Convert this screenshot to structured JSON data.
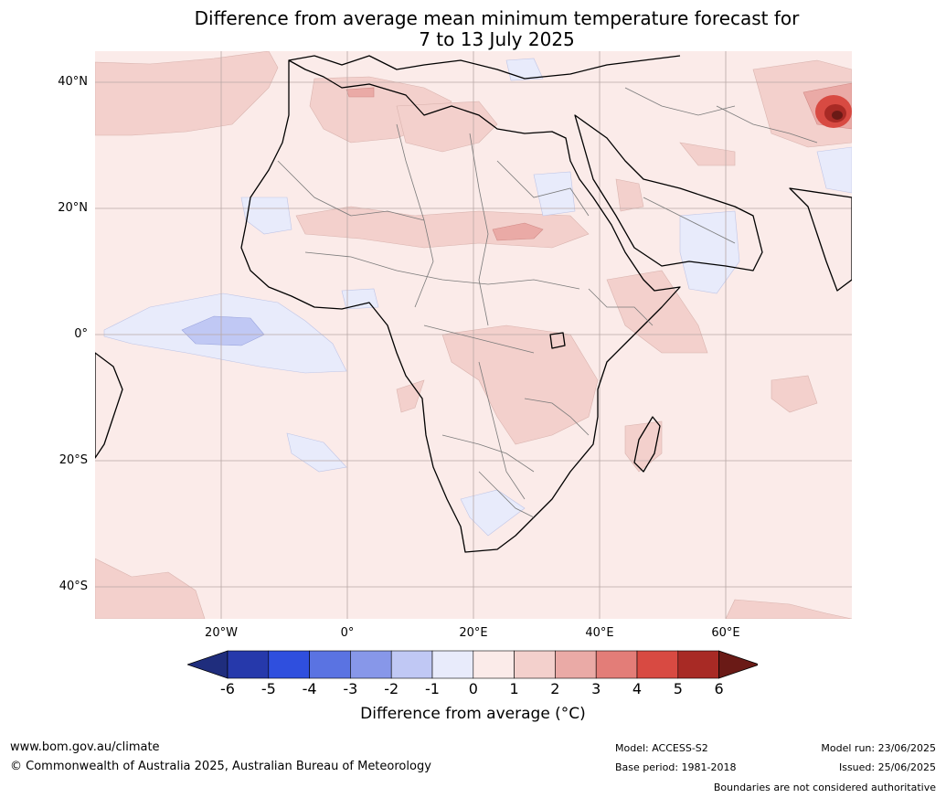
{
  "title": {
    "line1": "Difference from average mean minimum temperature forecast for",
    "line2": "7 to 13 July 2025"
  },
  "map": {
    "lat_labels": [
      "40°N",
      "20°N",
      "0°",
      "20°S",
      "40°S"
    ],
    "lon_labels": [
      "20°W",
      "0°",
      "20°E",
      "40°E",
      "60°E"
    ],
    "ocean_base_color": "#fbebe9",
    "land_base_color": "#fbebe9"
  },
  "colorbar": {
    "ticks": [
      "-6",
      "-5",
      "-4",
      "-3",
      "-2",
      "-1",
      "0",
      "1",
      "2",
      "3",
      "4",
      "5",
      "6"
    ],
    "colors": [
      "#1f2d7d",
      "#2639ab",
      "#2f4fde",
      "#5a73e2",
      "#8797e9",
      "#c0c8f4",
      "#e8ebfb",
      "#fbebe9",
      "#f3d0cc",
      "#eaaaa6",
      "#e37d78",
      "#d84a42",
      "#a82a25",
      "#6a1a16"
    ],
    "label": "Difference from average ($^\\circ$C)",
    "label_display": "Difference from average (°C)"
  },
  "footer": {
    "website": "www.bom.gov.au/climate",
    "copyright": "© Commonwealth of Australia 2025, Australian Bureau of Meteorology",
    "model": "Model: ACCESS-S2",
    "base_period": "Base period: 1981-2018",
    "model_run": "Model run: 23/06/2025",
    "issued": "Issued: 25/06/2025",
    "disclaimer": "Boundaries are not considered authoritative"
  }
}
